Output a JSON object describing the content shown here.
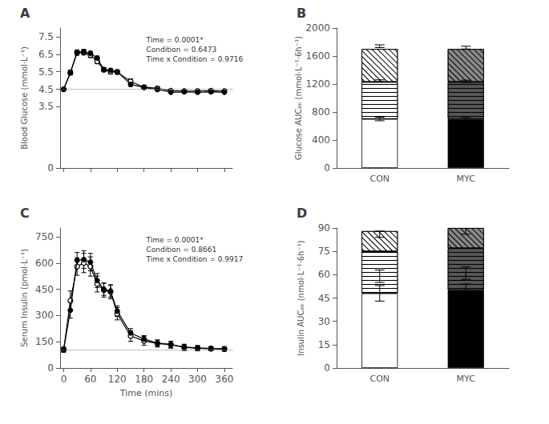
{
  "chart_data": [
    {
      "type": "line",
      "title": "A",
      "ylabel": "Blood Glucose (mmol·L⁻¹)",
      "x": [
        0,
        15,
        30,
        45,
        60,
        75,
        90,
        105,
        120,
        150,
        180,
        210,
        240,
        270,
        300,
        330,
        360
      ],
      "xlim": [
        -8,
        378
      ],
      "xticks": [
        0,
        60,
        120,
        180,
        240,
        300,
        360
      ],
      "ylim": [
        0,
        8
      ],
      "yticks": [
        0,
        3.5,
        4.5,
        5.5,
        6.5,
        7.5
      ],
      "tick_labels": "y",
      "grid": false,
      "reference_line": 4.5,
      "annotation": "Time = 0.0001*\nCondition = 0.6473\nTime x Condition = 0.9716",
      "series": [
        {
          "color": "black",
          "marker": "filled",
          "values": [
            4.5,
            5.45,
            6.62,
            6.65,
            6.55,
            6.28,
            5.62,
            5.58,
            5.5,
            4.78,
            4.6,
            4.48,
            4.33,
            4.35,
            4.33,
            4.35,
            4.33
          ],
          "errors": [
            0.05,
            0.13,
            0.12,
            0.13,
            0.13,
            0.12,
            0.1,
            0.1,
            0.1,
            0.12,
            0.08,
            0.06,
            0.06,
            0.07,
            0.06,
            0.06,
            0.06
          ]
        },
        {
          "color": "black",
          "marker": "open",
          "values": [
            4.5,
            5.45,
            6.58,
            6.6,
            6.45,
            6.1,
            5.62,
            5.5,
            5.48,
            4.95,
            4.62,
            4.55,
            4.42,
            4.4,
            4.4,
            4.42,
            4.4
          ],
          "errors": [
            0.05,
            0.13,
            0.13,
            0.14,
            0.14,
            0.14,
            0.12,
            0.12,
            0.12,
            0.14,
            0.1,
            0.08,
            0.08,
            0.08,
            0.07,
            0.07,
            0.07
          ]
        }
      ]
    },
    {
      "type": "bar",
      "stacked": true,
      "title": "B",
      "ylabel": "Glucose AUC₆ₕ (mmol·L⁻¹·6h⁻¹)",
      "categories": [
        "CON",
        "MYC"
      ],
      "ylim": [
        0,
        2000
      ],
      "yticks": [
        0,
        400,
        800,
        1200,
        1600,
        2000
      ],
      "grid": false,
      "series": [
        {
          "colors": [
            "white",
            "black"
          ],
          "values": [
            700,
            700
          ],
          "error_at": [
            700,
            700
          ],
          "errors": [
            25,
            20
          ]
        },
        {
          "colors": [
            "white",
            "#555555"
          ],
          "values": [
            530,
            530
          ],
          "error_at": [
            1245,
            1240
          ],
          "errors": [
            15,
            15
          ]
        },
        {
          "colors": [
            "white",
            "#888888"
          ],
          "values": [
            470,
            470
          ],
          "error_at": [
            1740,
            1720
          ],
          "errors": [
            20,
            20
          ]
        }
      ]
    },
    {
      "type": "line",
      "title": "C",
      "ylabel": "Serum Insulin (pmol·L⁻¹)",
      "xlabel": "Time (mins)",
      "x": [
        0,
        15,
        30,
        45,
        60,
        75,
        90,
        105,
        120,
        150,
        180,
        210,
        240,
        270,
        300,
        330,
        360
      ],
      "xlim": [
        -8,
        378
      ],
      "xticks": [
        0,
        60,
        120,
        180,
        240,
        300,
        360
      ],
      "ylim": [
        0,
        800
      ],
      "yticks": [
        0,
        150,
        300,
        450,
        600,
        750
      ],
      "grid": false,
      "reference_line": 105,
      "annotation": "Time = 0.0001*\nCondition = 0.8661\nTime x Condition = 0.9917",
      "series": [
        {
          "color": "black",
          "marker": "filled",
          "values": [
            105,
            330,
            615,
            620,
            605,
            500,
            450,
            440,
            325,
            200,
            165,
            142,
            135,
            120,
            115,
            112,
            110
          ],
          "errors": [
            12,
            45,
            45,
            50,
            50,
            40,
            35,
            35,
            30,
            25,
            20,
            18,
            18,
            15,
            12,
            10,
            10
          ]
        },
        {
          "color": "black",
          "marker": "open",
          "values": [
            105,
            385,
            580,
            600,
            580,
            480,
            445,
            435,
            310,
            183,
            155,
            140,
            133,
            118,
            113,
            110,
            108
          ],
          "errors": [
            15,
            55,
            50,
            55,
            55,
            45,
            40,
            40,
            35,
            30,
            25,
            20,
            20,
            18,
            15,
            12,
            12
          ]
        }
      ]
    },
    {
      "type": "bar",
      "stacked": true,
      "title": "D",
      "ylabel": "Insulin AUC₆ₕ (nmol·L⁻¹·6h⁻¹)",
      "categories": [
        "CON",
        "MYC"
      ],
      "ylim": [
        0,
        90
      ],
      "yticks": [
        0,
        15,
        30,
        45,
        60,
        75,
        90
      ],
      "grid": false,
      "series": [
        {
          "colors": [
            "white",
            "black"
          ],
          "values": [
            48,
            50
          ],
          "error_at": [
            48,
            50
          ],
          "errors": [
            5,
            4
          ]
        },
        {
          "colors": [
            "white",
            "#555555"
          ],
          "values": [
            27,
            27
          ],
          "error_at": [
            59,
            61
          ],
          "errors": [
            4,
            4
          ]
        },
        {
          "colors": [
            "white",
            "#888888"
          ],
          "values": [
            13,
            13
          ],
          "error_at": [
            86,
            88
          ],
          "errors": [
            2,
            2
          ]
        }
      ]
    }
  ]
}
